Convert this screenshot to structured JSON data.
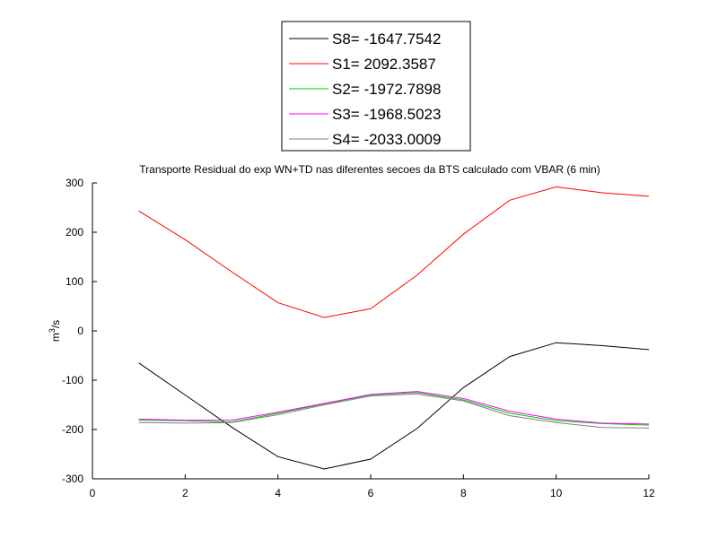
{
  "chart_data": {
    "type": "line",
    "title": "Transporte Residual do exp WN+TD nas diferentes secoes da BTS calculado com VBAR (6 min)",
    "ylabel_base": "m",
    "ylabel_sup": "3",
    "ylabel_rest": "/s",
    "xlabel": "",
    "xlim": [
      0,
      12
    ],
    "ylim": [
      -300,
      300
    ],
    "xticks": [
      "0",
      "2",
      "4",
      "6",
      "8",
      "10",
      "12"
    ],
    "yticks": [
      "300",
      "200",
      "100",
      "0",
      "-100",
      "-200",
      "-300"
    ],
    "grid": false,
    "legend_position": "top-center",
    "x": [
      1,
      2,
      3,
      4,
      5,
      6,
      7,
      8,
      9,
      10,
      11,
      12
    ],
    "series": [
      {
        "name": "S8= -1647.7542",
        "color": "#000000",
        "values": [
          -65,
          -130,
          -195,
          -255,
          -280,
          -260,
          -198,
          -115,
          -52,
          -24,
          -30,
          -38
        ]
      },
      {
        "name": "S1= 2092.3587",
        "color": "#ff0000",
        "values": [
          243,
          185,
          120,
          57,
          27,
          45,
          113,
          196,
          265,
          292,
          280,
          273
        ]
      },
      {
        "name": "S2= -1972.7898",
        "color": "#00cc00",
        "values": [
          -181,
          -182,
          -185,
          -167,
          -148,
          -130,
          -125,
          -140,
          -167,
          -182,
          -188,
          -191
        ]
      },
      {
        "name": "S3= -1968.5023",
        "color": "#ff00ff",
        "values": [
          -179,
          -181,
          -181,
          -165,
          -147,
          -129,
          -123,
          -137,
          -163,
          -179,
          -187,
          -189
        ]
      },
      {
        "name": "S4= -2033.0009",
        "color": "#808080",
        "values": [
          -186,
          -187,
          -186,
          -170,
          -150,
          -132,
          -128,
          -142,
          -172,
          -186,
          -196,
          -197
        ]
      }
    ]
  }
}
